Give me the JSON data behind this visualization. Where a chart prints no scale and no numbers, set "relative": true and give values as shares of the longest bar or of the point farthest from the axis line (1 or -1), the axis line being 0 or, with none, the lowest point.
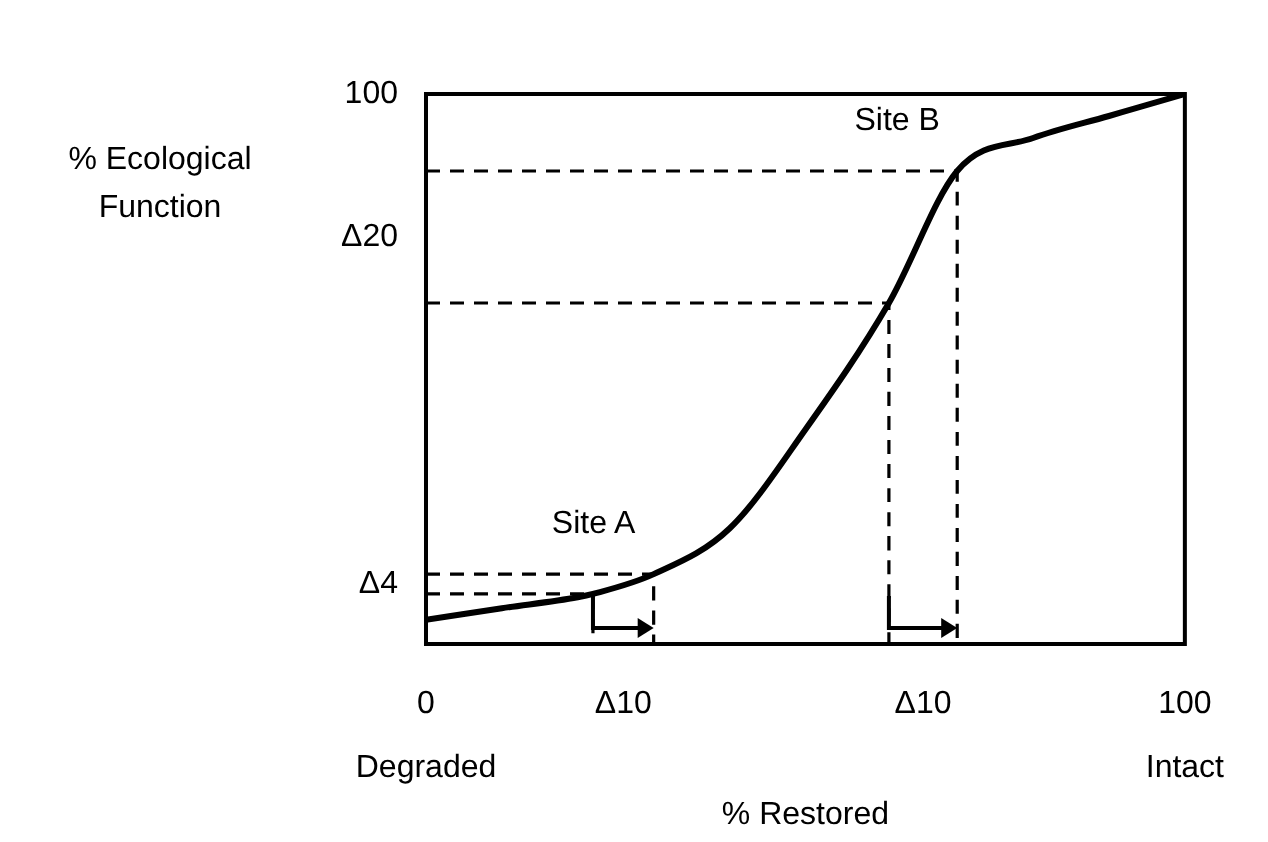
{
  "chart_data": {
    "type": "line",
    "xlabel": "% Restored",
    "ylabel": "% Ecological Function",
    "relative": true,
    "xlim": [
      0,
      100
    ],
    "xticks": [
      {
        "value": 0,
        "label": "0\nDegraded"
      },
      {
        "value": 26,
        "label": "Δ10"
      },
      {
        "value": 65.5,
        "label": "Δ10"
      },
      {
        "value": 100,
        "label": "100\nIntact"
      }
    ],
    "grid": false,
    "legend": false,
    "marker": "none",
    "line_style": "solid",
    "series": [
      {
        "color": "#000000",
        "x": [
          0,
          10,
          20,
          22,
          30,
          40,
          50,
          61,
          70,
          80,
          90,
          100
        ],
        "values": [
          0.044,
          0.065,
          0.085,
          0.091,
          0.127,
          0.21,
          0.39,
          0.62,
          0.86,
          0.92,
          0.96,
          1
        ]
      },
      {
        "type": "line",
        "color": "#000000",
        "line_style": "dashed",
        "x": [
          0,
          22,
          22
        ],
        "values": [
          0.091,
          0.091,
          0
        ]
      },
      {
        "type": "line",
        "color": "#000000",
        "line_style": "dashed",
        "x": [
          0,
          30,
          30
        ],
        "values": [
          0.127,
          0.127,
          0
        ]
      },
      {
        "type": "line",
        "color": "#000000",
        "line_style": "dashed",
        "x": [
          0,
          61,
          61
        ],
        "values": [
          0.62,
          0.62,
          0
        ]
      },
      {
        "type": "line",
        "color": "#000000",
        "line_style": "dashed",
        "x": [
          0,
          70,
          70
        ],
        "values": [
          0.86,
          0.86,
          0
        ]
      }
    ],
    "annotations": [
      {
        "text": "Site A",
        "x": 30,
        "y": 0.127
      },
      {
        "text": "Site B",
        "x": 70,
        "y": 0.86
      },
      "100",
      "Δ20",
      "Δ4"
    ]
  }
}
